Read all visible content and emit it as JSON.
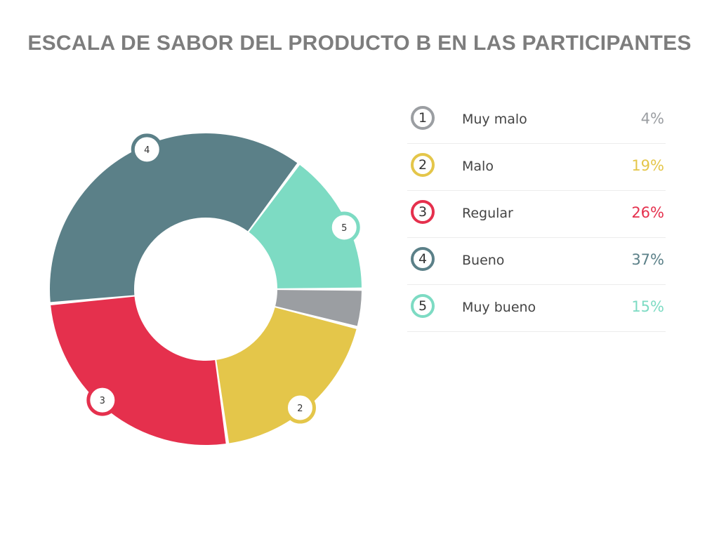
{
  "title": "ESCALA DE SABOR DEL PRODUCTO B EN LAS PARTICIPANTES",
  "chart_data": {
    "type": "pie",
    "title": "ESCALA DE SABOR DEL PRODUCTO B EN LAS PARTICIPANTES",
    "variant": "donut",
    "categories": [
      "Muy malo",
      "Malo",
      "Regular",
      "Bueno",
      "Muy bueno"
    ],
    "codes": [
      "1",
      "2",
      "3",
      "4",
      "5"
    ],
    "values": [
      4,
      19,
      26,
      37,
      15
    ],
    "value_labels": [
      "4%",
      "19%",
      "26%",
      "37%",
      "15%"
    ],
    "colors": [
      "#9b9ea2",
      "#e4c64a",
      "#e5304d",
      "#5b8088",
      "#7ddbc3"
    ],
    "legend_position": "right"
  }
}
